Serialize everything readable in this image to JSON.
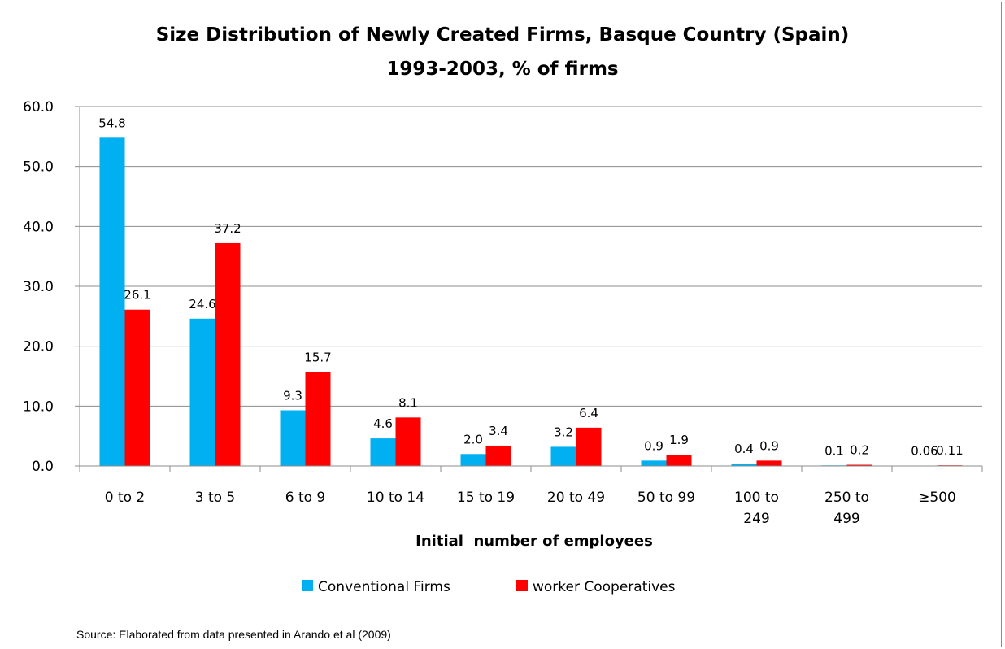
{
  "chart_data": {
    "type": "bar",
    "title": "Size Distribution of Newly Created Firms, Basque Country (Spain)",
    "subtitle": "1993-2003, % of firms",
    "xlabel": "Initial  number of employees",
    "ylabel": "",
    "ylim": [
      0,
      60
    ],
    "yticks": [
      "0.0",
      "10.0",
      "20.0",
      "30.0",
      "40.0",
      "50.0",
      "60.0"
    ],
    "grid": true,
    "legend_position": "bottom",
    "categories": [
      [
        "0 to 2"
      ],
      [
        "3 to 5"
      ],
      [
        "6 to 9"
      ],
      [
        "10 to 14"
      ],
      [
        "15 to 19"
      ],
      [
        "20 to 49"
      ],
      [
        "50 to 99"
      ],
      [
        "100 to",
        "249"
      ],
      [
        "250 to",
        "499"
      ],
      [
        "≥500"
      ]
    ],
    "series": [
      {
        "name": "Conventional Firms",
        "color": "#00b0f0",
        "values": [
          54.8,
          24.6,
          9.3,
          4.6,
          2.0,
          3.2,
          0.9,
          0.4,
          0.1,
          0.06
        ],
        "labels": [
          "54.8",
          "24.6",
          "9.3",
          "4.6",
          "2.0",
          "3.2",
          "0.9",
          "0.4",
          "0.1",
          "0.06"
        ]
      },
      {
        "name": "worker Cooperatives",
        "color": "#ff0000",
        "values": [
          26.1,
          37.2,
          15.7,
          8.1,
          3.4,
          6.4,
          1.9,
          0.9,
          0.2,
          0.11
        ],
        "labels": [
          "26.1",
          "37.2",
          "15.7",
          "8.1",
          "3.4",
          "6.4",
          "1.9",
          "0.9",
          "0.2",
          "0.11"
        ]
      }
    ],
    "source": "Source: Elaborated from data presented in Arando et al (2009)"
  }
}
